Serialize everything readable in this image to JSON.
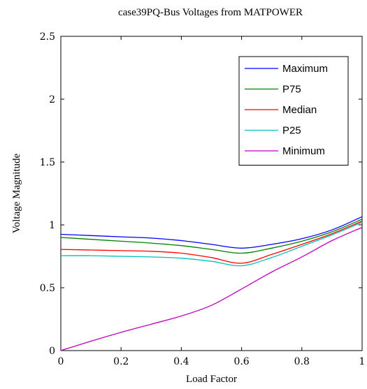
{
  "chart_data": {
    "type": "line",
    "title": "case39PQ-Bus Voltages from MATPOWER",
    "xlabel": "Load Factor",
    "ylabel": "Voltage Magnitude",
    "xlim": [
      0,
      1
    ],
    "ylim": [
      0,
      2.5
    ],
    "x_ticks": [
      0,
      0.2,
      0.4,
      0.6,
      0.8,
      1
    ],
    "x_tick_labels": [
      "0",
      "0.2",
      "0.4",
      "0.6",
      "0.8",
      "1"
    ],
    "y_ticks": [
      0,
      0.5,
      1,
      1.5,
      2,
      2.5
    ],
    "y_tick_labels": [
      "0",
      "0.5",
      "1",
      "1.5",
      "2",
      "2.5"
    ],
    "grid": false,
    "legend_position": "top-right",
    "series": [
      {
        "name": "Maximum",
        "color": "#0000ff",
        "x": [
          0,
          0.1,
          0.2,
          0.3,
          0.4,
          0.5,
          0.6,
          0.7,
          0.8,
          0.9,
          1.0
        ],
        "values": [
          0.925,
          0.915,
          0.905,
          0.895,
          0.875,
          0.845,
          0.815,
          0.845,
          0.89,
          0.96,
          1.065
        ]
      },
      {
        "name": "P75",
        "color": "#008000",
        "x": [
          0,
          0.1,
          0.2,
          0.3,
          0.4,
          0.5,
          0.6,
          0.7,
          0.8,
          0.9,
          1.0
        ],
        "values": [
          0.9,
          0.885,
          0.87,
          0.855,
          0.835,
          0.805,
          0.775,
          0.815,
          0.87,
          0.945,
          1.045
        ]
      },
      {
        "name": "Median",
        "color": "#ff0000",
        "x": [
          0,
          0.1,
          0.2,
          0.3,
          0.4,
          0.5,
          0.6,
          0.7,
          0.8,
          0.9,
          1.0
        ],
        "values": [
          0.805,
          0.8,
          0.795,
          0.79,
          0.775,
          0.74,
          0.695,
          0.765,
          0.845,
          0.93,
          1.03
        ]
      },
      {
        "name": "P25",
        "color": "#00bfbf",
        "x": [
          0,
          0.1,
          0.2,
          0.3,
          0.4,
          0.5,
          0.6,
          0.7,
          0.8,
          0.9,
          1.0
        ],
        "values": [
          0.755,
          0.755,
          0.75,
          0.745,
          0.735,
          0.71,
          0.675,
          0.74,
          0.83,
          0.92,
          1.02
        ]
      },
      {
        "name": "Minimum",
        "color": "#bf00bf",
        "x": [
          0,
          0.1,
          0.2,
          0.3,
          0.4,
          0.5,
          0.6,
          0.7,
          0.8,
          0.9,
          1.0
        ],
        "values": [
          0.0,
          0.075,
          0.145,
          0.21,
          0.275,
          0.36,
          0.49,
          0.625,
          0.745,
          0.875,
          0.98
        ]
      }
    ]
  }
}
